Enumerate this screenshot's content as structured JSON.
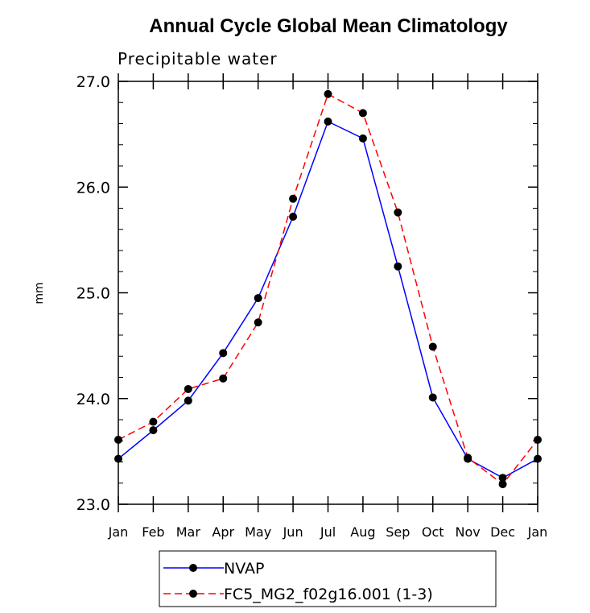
{
  "chart_data": {
    "type": "line",
    "title": "Annual Cycle Global Mean Climatology",
    "subtitle": "Precipitable water",
    "xlabel": "",
    "ylabel": "mm",
    "categories": [
      "Jan",
      "Feb",
      "Mar",
      "Apr",
      "May",
      "Jun",
      "Jul",
      "Aug",
      "Sep",
      "Oct",
      "Nov",
      "Dec",
      "Jan"
    ],
    "ylim": [
      23.0,
      27.0
    ],
    "yticks": [
      "23.0",
      "24.0",
      "25.0",
      "26.0",
      "27.0"
    ],
    "grid": false,
    "legend_position": "bottom",
    "series": [
      {
        "name": "NVAP",
        "color": "#0000ff",
        "line_style": "solid",
        "marker": "filled-circle",
        "values": [
          23.43,
          23.7,
          23.98,
          24.43,
          24.95,
          25.72,
          26.62,
          26.46,
          25.25,
          24.01,
          23.43,
          23.25,
          23.43
        ]
      },
      {
        "name": "FC5_MG2_f02g16.001 (1-3)",
        "color": "#ff0000",
        "line_style": "dashed",
        "marker": "filled-circle",
        "values": [
          23.61,
          23.78,
          24.09,
          24.19,
          24.72,
          25.89,
          26.88,
          26.7,
          25.76,
          24.49,
          23.44,
          23.19,
          23.61
        ]
      }
    ]
  }
}
